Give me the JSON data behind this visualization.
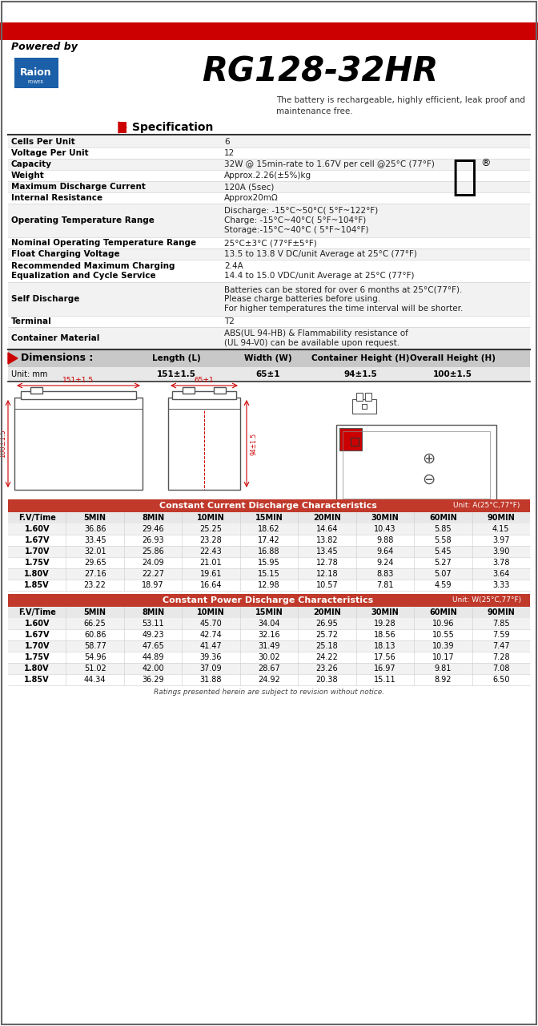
{
  "title": "RG128-32HR",
  "powered_by": "Powered by",
  "tagline": "The battery is rechargeable, highly efficient, leak proof and\nmaintenance free.",
  "spec_header": "Specification",
  "specs": [
    [
      "Cells Per Unit",
      "6"
    ],
    [
      "Voltage Per Unit",
      "12"
    ],
    [
      "Capacity",
      "32W @ 15min-rate to 1.67V per cell @25°C (77°F)"
    ],
    [
      "Weight",
      "Approx.2.26(±5%)kg"
    ],
    [
      "Maximum Discharge Current",
      "120A (5sec)"
    ],
    [
      "Internal Resistance",
      "Approx20mΩ"
    ],
    [
      "Operating Temperature Range",
      "Discharge: -15°C~50°C( 5°F~122°F)\nCharge: -15°C~40°C( 5°F~104°F)\nStorage:-15°C~40°C ( 5°F~104°F)"
    ],
    [
      "Nominal Operating Temperature Range",
      "25°C±3°C (77°F±5°F)"
    ],
    [
      "Float Charging Voltage",
      "13.5 to 13.8 V DC/unit Average at 25°C (77°F)"
    ],
    [
      "Recommended Maximum Charging\nEqualization and Cycle Service",
      "2.4A\n14.4 to 15.0 VDC/unit Average at 25°C (77°F)"
    ],
    [
      "Self Discharge",
      "Batteries can be stored for over 6 months at 25°C(77°F).\nPlease charge batteries before using.\nFor higher temperatures the time interval will be shorter."
    ],
    [
      "Terminal",
      "T2"
    ],
    [
      "Container Material",
      "ABS(UL 94-HB) & Flammability resistance of\n(UL 94-V0) can be available upon request."
    ]
  ],
  "dim_header": "Dimensions :",
  "dim_cols": [
    "Length (L)",
    "Width (W)",
    "Container Height (H)",
    "Overall Height (H)"
  ],
  "dim_unit": "Unit: mm",
  "dim_vals": [
    "151±1.5",
    "65±1",
    "94±1.5",
    "100±1.5"
  ],
  "cc_header": "Constant Current Discharge Characteristics",
  "cc_unit": "Unit: A(25°C,77°F)",
  "cc_cols": [
    "F.V/Time",
    "5MIN",
    "8MIN",
    "10MIN",
    "15MIN",
    "20MIN",
    "30MIN",
    "60MIN",
    "90MIN"
  ],
  "cc_data": [
    [
      "1.60V",
      "36.86",
      "29.46",
      "25.25",
      "18.62",
      "14.64",
      "10.43",
      "5.85",
      "4.15"
    ],
    [
      "1.67V",
      "33.45",
      "26.93",
      "23.28",
      "17.42",
      "13.82",
      "9.88",
      "5.58",
      "3.97"
    ],
    [
      "1.70V",
      "32.01",
      "25.86",
      "22.43",
      "16.88",
      "13.45",
      "9.64",
      "5.45",
      "3.90"
    ],
    [
      "1.75V",
      "29.65",
      "24.09",
      "21.01",
      "15.95",
      "12.78",
      "9.24",
      "5.27",
      "3.78"
    ],
    [
      "1.80V",
      "27.16",
      "22.27",
      "19.61",
      "15.15",
      "12.18",
      "8.83",
      "5.07",
      "3.64"
    ],
    [
      "1.85V",
      "23.22",
      "18.97",
      "16.64",
      "12.98",
      "10.57",
      "7.81",
      "4.59",
      "3.33"
    ]
  ],
  "cp_header": "Constant Power Discharge Characteristics",
  "cp_unit": "Unit: W(25°C,77°F)",
  "cp_cols": [
    "F.V/Time",
    "5MIN",
    "8MIN",
    "10MIN",
    "15MIN",
    "20MIN",
    "30MIN",
    "60MIN",
    "90MIN"
  ],
  "cp_data": [
    [
      "1.60V",
      "66.25",
      "53.11",
      "45.70",
      "34.04",
      "26.95",
      "19.28",
      "10.96",
      "7.85"
    ],
    [
      "1.67V",
      "60.86",
      "49.23",
      "42.74",
      "32.16",
      "25.72",
      "18.56",
      "10.55",
      "7.59"
    ],
    [
      "1.70V",
      "58.77",
      "47.65",
      "41.47",
      "31.49",
      "25.18",
      "18.13",
      "10.39",
      "7.47"
    ],
    [
      "1.75V",
      "54.96",
      "44.89",
      "39.36",
      "30.02",
      "24.22",
      "17.56",
      "10.17",
      "7.28"
    ],
    [
      "1.80V",
      "51.02",
      "42.00",
      "37.09",
      "28.67",
      "23.26",
      "16.97",
      "9.81",
      "7.08"
    ],
    [
      "1.85V",
      "44.34",
      "36.29",
      "31.88",
      "24.92",
      "20.38",
      "15.11",
      "8.92",
      "6.50"
    ]
  ],
  "footer": "Ratings presented herein are subject to revision without notice.",
  "red_bar_color": "#cc0000",
  "header_bg": "#d9534f",
  "table_header_bg": "#c0392b",
  "light_gray": "#f2f2f2",
  "dark_gray": "#555555",
  "dim_bg": "#c8c8c8",
  "white": "#ffffff",
  "black": "#000000",
  "blue": "#1a5fa8",
  "col_split": 0.42
}
